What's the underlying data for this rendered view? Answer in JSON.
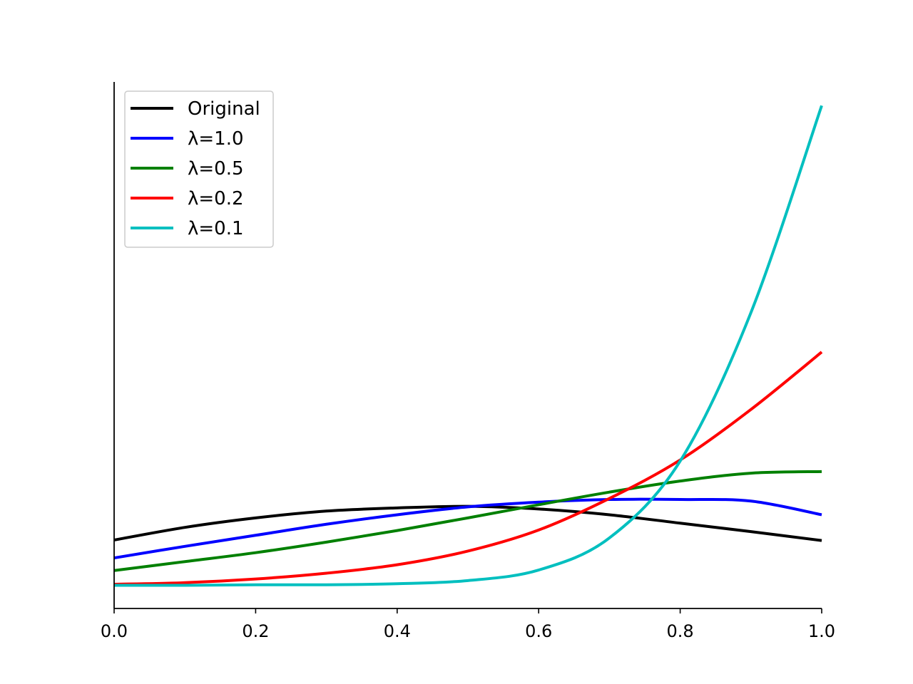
{
  "chart_data": {
    "type": "line",
    "title": "",
    "xlabel": "",
    "ylabel": "",
    "xlim": [
      0.0,
      1.0
    ],
    "ylim": [
      0.0,
      1.0
    ],
    "x_ticks": [
      "0.0",
      "0.2",
      "0.4",
      "0.6",
      "0.8",
      "1.0"
    ],
    "x_tick_values": [
      0.0,
      0.2,
      0.4,
      0.6,
      0.8,
      1.0
    ],
    "y_ticks_shown": false,
    "spines": "left and bottom only",
    "grid": false,
    "legend_position": "top-left",
    "x": [
      0.0,
      0.1,
      0.2,
      0.3,
      0.4,
      0.5,
      0.6,
      0.7,
      0.8,
      0.9,
      1.0
    ],
    "series": [
      {
        "name": "Original",
        "color": "#000000",
        "values": [
          0.13,
          0.154,
          0.172,
          0.185,
          0.191,
          0.194,
          0.189,
          0.178,
          0.162,
          0.146,
          0.129
        ]
      },
      {
        "name": "λ=1.0",
        "color": "#0000ff",
        "values": [
          0.096,
          0.118,
          0.139,
          0.16,
          0.178,
          0.193,
          0.202,
          0.207,
          0.207,
          0.204,
          0.178
        ]
      },
      {
        "name": "λ=0.5",
        "color": "#008000",
        "values": [
          0.072,
          0.089,
          0.106,
          0.126,
          0.148,
          0.172,
          0.197,
          0.221,
          0.242,
          0.257,
          0.26
        ]
      },
      {
        "name": "λ=0.2",
        "color": "#ff0000",
        "values": [
          0.046,
          0.049,
          0.056,
          0.067,
          0.083,
          0.109,
          0.149,
          0.209,
          0.282,
          0.378,
          0.487
        ]
      },
      {
        "name": "λ=0.1",
        "color": "#00bfbf",
        "values": [
          0.044,
          0.044,
          0.045,
          0.045,
          0.047,
          0.053,
          0.073,
          0.134,
          0.28,
          0.562,
          0.955
        ]
      }
    ]
  }
}
